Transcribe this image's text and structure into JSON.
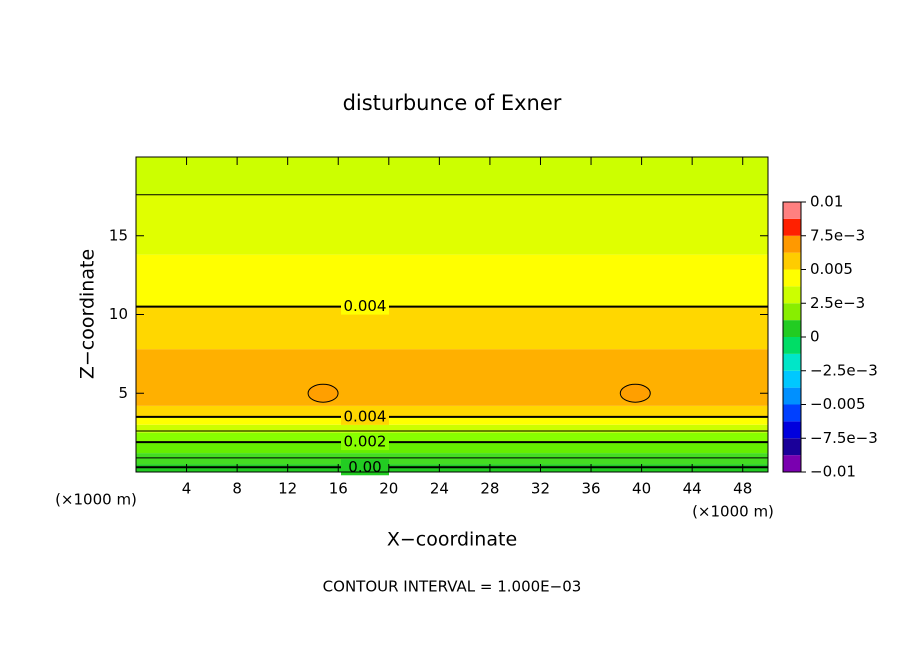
{
  "chart_data": {
    "type": "contour",
    "title": "disturbunce of Exner",
    "xlabel": "X−coordinate",
    "ylabel": "Z−coordinate",
    "x_unit_left": "(×1000 m)",
    "x_unit_right": "(×1000 m)",
    "footnote": "CONTOUR INTERVAL = 1.000E−03",
    "xlim": [
      0,
      50
    ],
    "ylim": [
      0,
      20
    ],
    "xticks": [
      4,
      8,
      12,
      16,
      20,
      24,
      28,
      32,
      36,
      40,
      44,
      48
    ],
    "yticks": [
      5,
      10,
      15
    ],
    "bands": [
      {
        "bottom": 0,
        "top": 0.5,
        "color": "#22cc22"
      },
      {
        "bottom": 0.5,
        "top": 1.2,
        "color": "#44dd22"
      },
      {
        "bottom": 1.2,
        "top": 1.9,
        "color": "#66ee00"
      },
      {
        "bottom": 1.9,
        "top": 2.5,
        "color": "#88ff00"
      },
      {
        "bottom": 2.5,
        "top": 3.0,
        "color": "#ccff00"
      },
      {
        "bottom": 3.0,
        "top": 3.5,
        "color": "#ffff00"
      },
      {
        "bottom": 3.5,
        "top": 4.2,
        "color": "#ffd700"
      },
      {
        "bottom": 4.2,
        "top": 7.8,
        "color": "#ffb000"
      },
      {
        "bottom": 7.8,
        "top": 10.5,
        "color": "#ffd700"
      },
      {
        "bottom": 10.5,
        "top": 13.8,
        "color": "#ffff00"
      },
      {
        "bottom": 13.8,
        "top": 17.6,
        "color": "#e0ff00"
      },
      {
        "bottom": 17.6,
        "top": 20,
        "color": "#ccff00"
      }
    ],
    "highs": [
      {
        "x": 14.8,
        "z": 5.0
      },
      {
        "x": 39.5,
        "z": 5.0
      }
    ],
    "high_color": "#ff9f00",
    "contours": [
      {
        "z": 0.3,
        "label": "0.00"
      },
      {
        "z": 0.9
      },
      {
        "z": 1.9,
        "label": "0.002"
      },
      {
        "z": 2.6
      },
      {
        "z": 3.5,
        "label": "0.004"
      },
      {
        "z": 10.5,
        "label": "0.004"
      },
      {
        "z": 17.6
      }
    ],
    "colorbar": {
      "levels": [
        -0.01,
        -0.00875,
        -0.0075,
        -0.00625,
        -0.005,
        -0.00375,
        -0.0025,
        -0.00125,
        0,
        0.00125,
        0.0025,
        0.00375,
        0.005,
        0.00625,
        0.0075,
        0.00875,
        0.01
      ],
      "colors": [
        "#7a00b0",
        "#1a0099",
        "#0000dd",
        "#0040ff",
        "#0090ff",
        "#00c8ff",
        "#00e6c8",
        "#00dd66",
        "#22cc22",
        "#88ee00",
        "#ccff00",
        "#ffff00",
        "#ffcc00",
        "#ff9900",
        "#ff2000",
        "#ff8080"
      ],
      "ticks": [
        {
          "value": -0.01,
          "label": "−0.01"
        },
        {
          "value": -0.0075,
          "label": "−7.5e−3"
        },
        {
          "value": -0.005,
          "label": "−0.005"
        },
        {
          "value": -0.0025,
          "label": "−2.5e−3"
        },
        0,
        {
          "value": 0.0025,
          "label": "2.5e−3"
        },
        0.005,
        {
          "value": 0.0075,
          "label": "7.5e−3"
        },
        0.01
      ]
    }
  }
}
